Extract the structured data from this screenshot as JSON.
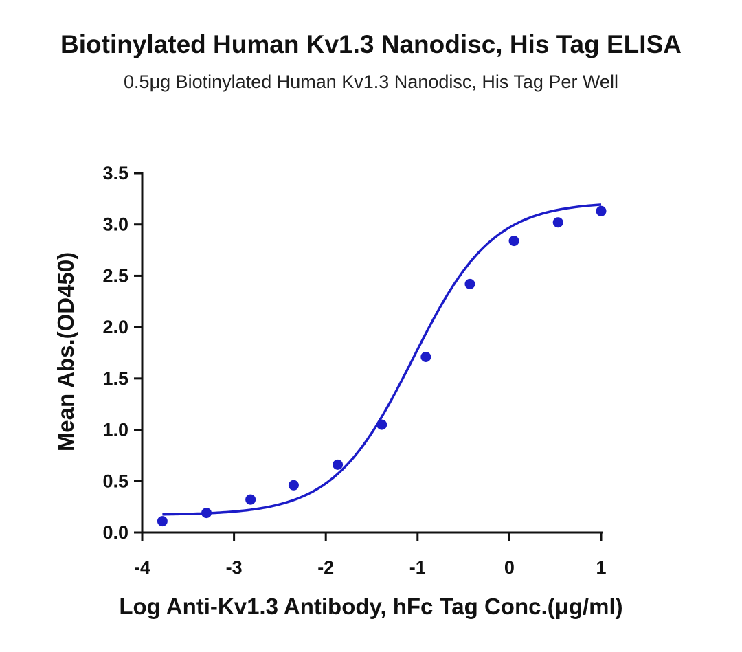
{
  "chart_data": {
    "type": "scatter",
    "title": "Biotinylated Human Kv1.3 Nanodisc, His Tag ELISA",
    "subtitle": "0.5μg Biotinylated Human Kv1.3 Nanodisc, His Tag Per Well",
    "xlabel": "Log Anti-Kv1.3 Antibody, hFc Tag Conc.(μg/ml)",
    "ylabel": "Mean Abs.(OD450)",
    "xlim": [
      -4,
      1
    ],
    "ylim": [
      0,
      3.5
    ],
    "x_ticks": [
      -4,
      -3,
      -2,
      -1,
      0,
      1
    ],
    "x_tick_labels": [
      "-4",
      "-3",
      "-2",
      "-1",
      "0",
      "1"
    ],
    "y_ticks": [
      0,
      0.5,
      1,
      1.5,
      2,
      2.5,
      3,
      3.5
    ],
    "y_tick_labels": [
      "0.0",
      "0.5",
      "1.0",
      "1.5",
      "2.0",
      "2.5",
      "3.0",
      "3.5"
    ],
    "grid": false,
    "series": [
      {
        "type": "scatter",
        "color": "#1c1cc8",
        "x": [
          -3.78,
          -3.3,
          -2.82,
          -2.35,
          -1.87,
          -1.39,
          -0.91,
          -0.43,
          0.05,
          0.53,
          1.0
        ],
        "y": [
          0.11,
          0.19,
          0.32,
          0.46,
          0.66,
          1.05,
          1.71,
          2.42,
          2.84,
          3.02,
          3.13
        ]
      },
      {
        "type": "line",
        "color": "#1c1cc8",
        "fit": "4PL",
        "x_range": [
          -3.78,
          1.0
        ],
        "bottom": 0.17,
        "top": 3.22,
        "logEC50": -1.05,
        "hill_slope": 1.0
      }
    ]
  }
}
